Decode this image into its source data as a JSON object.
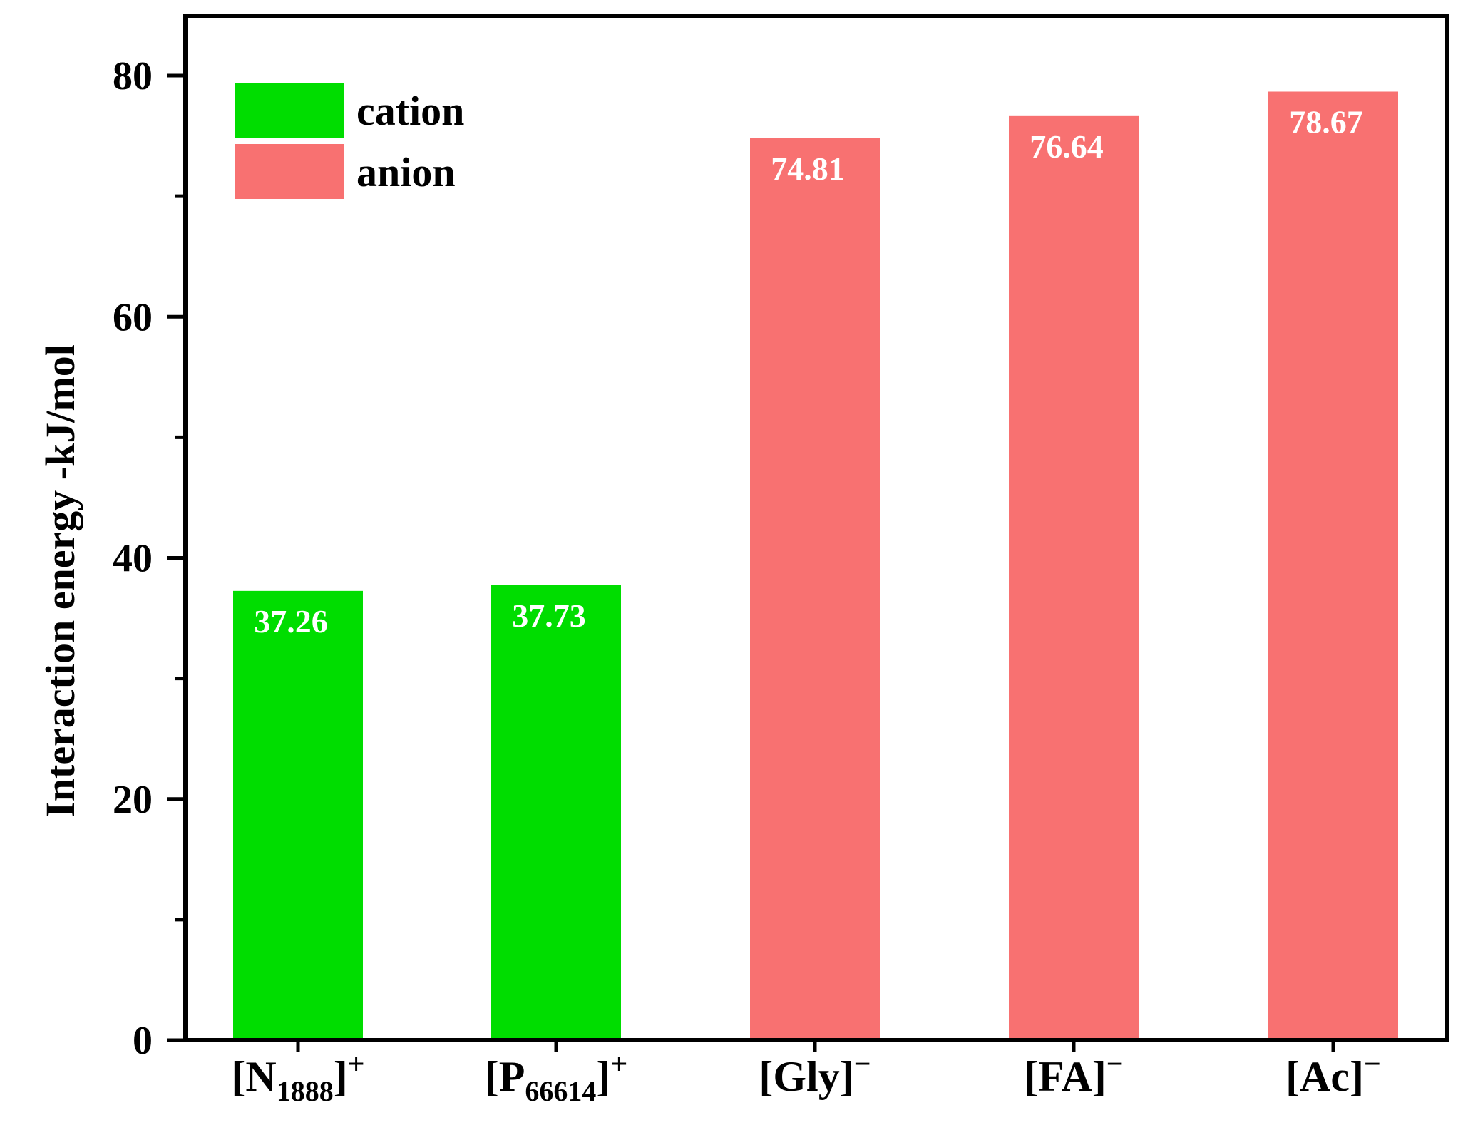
{
  "chart_data": {
    "type": "bar",
    "title": "",
    "xlabel": "",
    "ylabel": "Interaction energy -kJ/mol",
    "ylim": [
      0,
      85
    ],
    "yticks": [
      0,
      20,
      40,
      60,
      80
    ],
    "yminor_step": 10,
    "grid": false,
    "legend_position": "top-left",
    "categories": [
      {
        "base": "[N",
        "sub": "1888",
        "tail": "]",
        "sup": "+"
      },
      {
        "base": "[P",
        "sub": "66614",
        "tail": "]",
        "sup": "+"
      },
      {
        "base": "[Gly]",
        "sub": "",
        "tail": "",
        "sup": "−"
      },
      {
        "base": "[FA]",
        "sub": "",
        "tail": "",
        "sup": "−"
      },
      {
        "base": "[Ac]",
        "sub": "",
        "tail": "",
        "sup": "−"
      }
    ],
    "values": [
      37.26,
      37.73,
      74.81,
      76.64,
      78.67
    ],
    "value_labels": [
      "37.26",
      "37.73",
      "74.81",
      "76.64",
      "78.67"
    ],
    "groups": [
      "cation",
      "cation",
      "anion",
      "anion",
      "anion"
    ],
    "legend": [
      {
        "name": "cation",
        "color": "#00dd00"
      },
      {
        "name": "anion",
        "color": "#f87171"
      }
    ]
  }
}
